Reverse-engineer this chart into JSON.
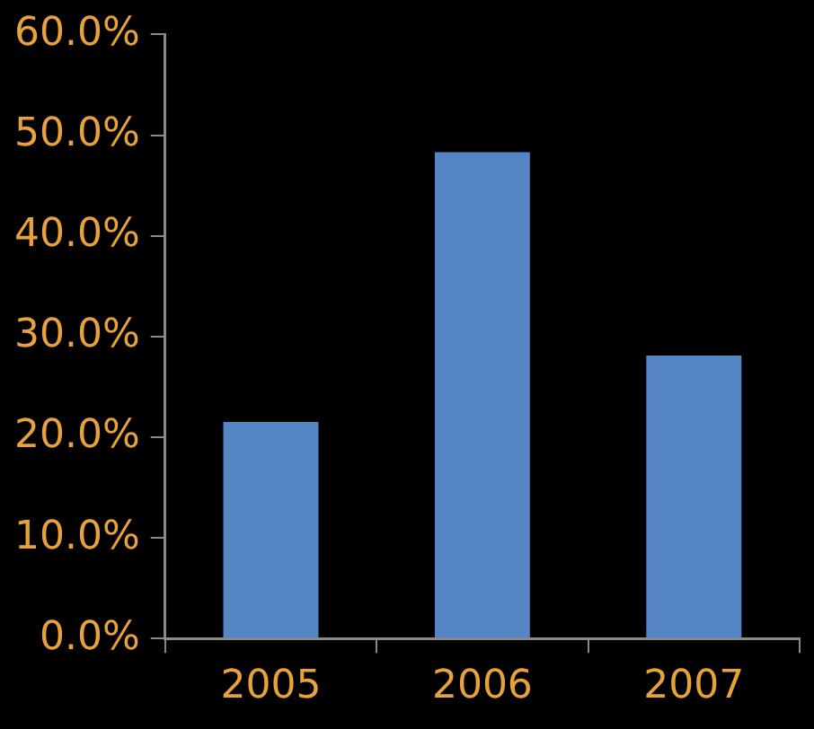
{
  "chart_data": {
    "type": "bar",
    "categories": [
      "2005",
      "2006",
      "2007"
    ],
    "values": [
      21.5,
      48.3,
      28.1
    ],
    "color": "#5585c5",
    "ylim": [
      0,
      60
    ],
    "yticks": [
      {
        "value": 0,
        "label": "0.0%"
      },
      {
        "value": 10,
        "label": "10.0%"
      },
      {
        "value": 20,
        "label": "20.0%"
      },
      {
        "value": 30,
        "label": "30.0%"
      },
      {
        "value": 40,
        "label": "40.0%"
      },
      {
        "value": 50,
        "label": "50.0%"
      },
      {
        "value": 60,
        "label": "60.0%"
      }
    ],
    "grid": false,
    "legend": false
  }
}
